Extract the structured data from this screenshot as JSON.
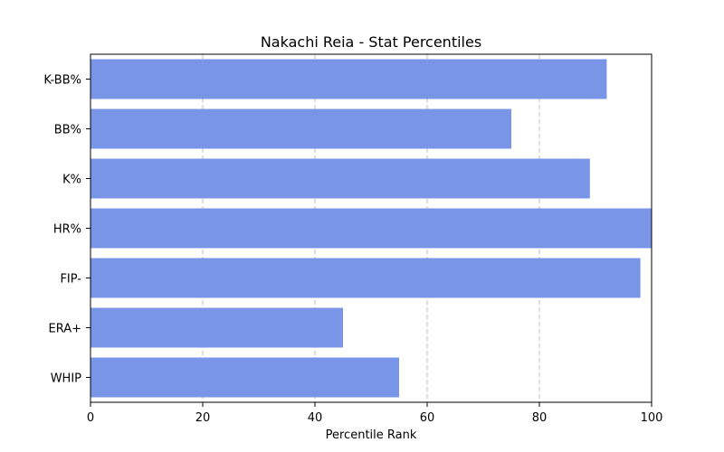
{
  "chart_data": {
    "type": "bar",
    "orientation": "horizontal",
    "title": "Nakachi Reia - Stat Percentiles",
    "xlabel": "Percentile Rank",
    "ylabel": "",
    "xlim": [
      0,
      100
    ],
    "x_ticks": [
      0,
      20,
      40,
      60,
      80,
      100
    ],
    "grid": "vertical dashed",
    "bar_color": "#7895e8",
    "categories": [
      "K-BB%",
      "BB%",
      "K%",
      "HR%",
      "FIP-",
      "ERA+",
      "WHIP"
    ],
    "values": [
      92,
      75,
      89,
      100,
      98,
      45,
      55
    ]
  }
}
